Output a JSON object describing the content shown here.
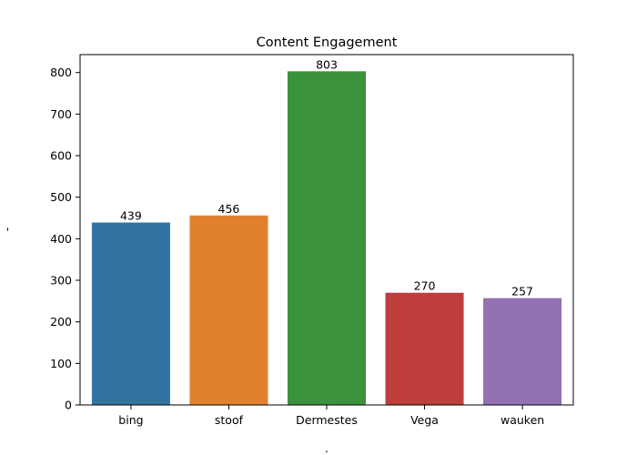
{
  "chart_data": {
    "type": "bar",
    "title": "Content Engagement",
    "xlabel": ".",
    "ylabel": "-",
    "categories": [
      "bing",
      "stoof",
      "Dermestes",
      "Vega",
      "wauken"
    ],
    "values": [
      439,
      456,
      803,
      270,
      257
    ],
    "colors": [
      "#3274a1",
      "#e1812c",
      "#3a923a",
      "#c03d3e",
      "#9372b2"
    ],
    "ylim": [
      0,
      843.15
    ],
    "yticks": [
      0,
      100,
      200,
      300,
      400,
      500,
      600,
      700,
      800
    ],
    "grid": false,
    "legend": "none"
  }
}
